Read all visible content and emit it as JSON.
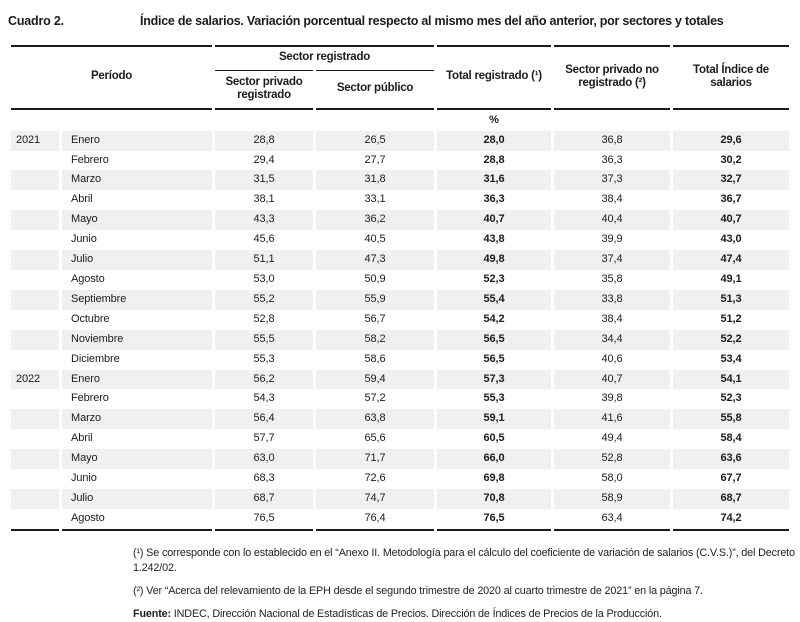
{
  "header": {
    "label": "Cuadro 2.",
    "title": "Índice de salarios. Variación porcentual respecto al mismo mes del año anterior, por sectores y totales"
  },
  "table": {
    "col_period": "Período",
    "group_registered": "Sector registrado",
    "columns": [
      "Sector privado registrado",
      "Sector público",
      "Total registrado (¹)",
      "Sector privado no registrado (²)",
      "Total Índice de salarios"
    ],
    "unit": "%",
    "rows": [
      {
        "year": "2021",
        "month": "Enero",
        "values": [
          "28,8",
          "26,5",
          "28,0",
          "36,8",
          "29,6"
        ]
      },
      {
        "year": "",
        "month": "Febrero",
        "values": [
          "29,4",
          "27,7",
          "28,8",
          "36,3",
          "30,2"
        ]
      },
      {
        "year": "",
        "month": "Marzo",
        "values": [
          "31,5",
          "31,8",
          "31,6",
          "37,3",
          "32,7"
        ]
      },
      {
        "year": "",
        "month": "Abril",
        "values": [
          "38,1",
          "33,1",
          "36,3",
          "38,4",
          "36,7"
        ]
      },
      {
        "year": "",
        "month": "Mayo",
        "values": [
          "43,3",
          "36,2",
          "40,7",
          "40,4",
          "40,7"
        ]
      },
      {
        "year": "",
        "month": "Junio",
        "values": [
          "45,6",
          "40,5",
          "43,8",
          "39,9",
          "43,0"
        ]
      },
      {
        "year": "",
        "month": "Julio",
        "values": [
          "51,1",
          "47,3",
          "49,8",
          "37,4",
          "47,4"
        ]
      },
      {
        "year": "",
        "month": "Agosto",
        "values": [
          "53,0",
          "50,9",
          "52,3",
          "35,8",
          "49,1"
        ]
      },
      {
        "year": "",
        "month": "Septiembre",
        "values": [
          "55,2",
          "55,9",
          "55,4",
          "33,8",
          "51,3"
        ]
      },
      {
        "year": "",
        "month": "Octubre",
        "values": [
          "52,8",
          "56,7",
          "54,2",
          "38,4",
          "51,2"
        ]
      },
      {
        "year": "",
        "month": "Noviembre",
        "values": [
          "55,5",
          "58,2",
          "56,5",
          "34,4",
          "52,2"
        ]
      },
      {
        "year": "",
        "month": "Diciembre",
        "values": [
          "55,3",
          "58,6",
          "56,5",
          "40,6",
          "53,4"
        ]
      },
      {
        "year": "2022",
        "month": "Enero",
        "values": [
          "56,2",
          "59,4",
          "57,3",
          "40,7",
          "54,1"
        ]
      },
      {
        "year": "",
        "month": "Febrero",
        "values": [
          "54,3",
          "57,2",
          "55,3",
          "39,8",
          "52,3"
        ]
      },
      {
        "year": "",
        "month": "Marzo",
        "values": [
          "56,4",
          "63,8",
          "59,1",
          "41,6",
          "55,8"
        ]
      },
      {
        "year": "",
        "month": "Abril",
        "values": [
          "57,7",
          "65,6",
          "60,5",
          "49,4",
          "58,4"
        ]
      },
      {
        "year": "",
        "month": "Mayo",
        "values": [
          "63,0",
          "71,7",
          "66,0",
          "52,8",
          "63,6"
        ]
      },
      {
        "year": "",
        "month": "Junio",
        "values": [
          "68,3",
          "72,6",
          "69,8",
          "58,0",
          "67,7"
        ]
      },
      {
        "year": "",
        "month": "Julio",
        "values": [
          "68,7",
          "74,7",
          "70,8",
          "58,9",
          "68,7"
        ]
      },
      {
        "year": "",
        "month": "Agosto",
        "values": [
          "76,5",
          "76,4",
          "76,5",
          "63,4",
          "74,2"
        ]
      }
    ]
  },
  "footnotes": {
    "note1": "(¹) Se corresponde con lo establecido en el “Anexo II. Metodología para el cálculo del coeficiente de variación de salarios (C.V.S.)”, del Decreto 1.242/02.",
    "note2": "(²) Ver “Acerca del relevamiento de la EPH desde el segundo trimestre de 2020 al cuarto trimestre de 2021” en la página 7.",
    "source_label": "Fuente:",
    "source_text": "INDEC, Dirección Nacional de Estadísticas de Precios. Dirección de Índices de Precios de la Producción."
  },
  "colors": {
    "stripe": "#f0f0f0",
    "rule": "#1a1a1a",
    "text": "#1c1c1c",
    "background": "#ffffff"
  }
}
